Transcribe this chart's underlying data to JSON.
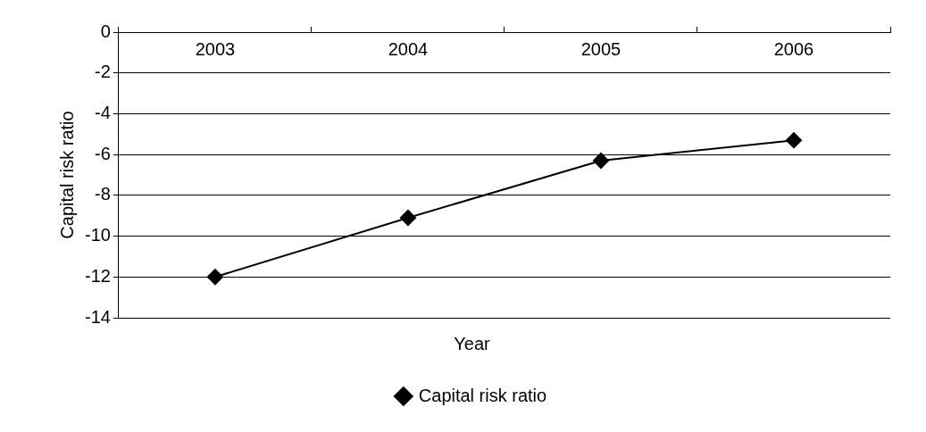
{
  "chart_data": {
    "type": "line",
    "xlabel": "Year",
    "ylabel": "Capital risk ratio",
    "categories": [
      "2003",
      "2004",
      "2005",
      "2006"
    ],
    "series": [
      {
        "name": "Capital risk ratio",
        "color": "#000000",
        "values": [
          -12.0,
          -9.1,
          -6.3,
          -5.3
        ]
      }
    ],
    "ylim": [
      -14,
      0
    ],
    "yticks": [
      -14,
      -12,
      -10,
      -8,
      -6,
      -4,
      -2,
      0
    ],
    "grid": "y",
    "legend": "bottom",
    "marker": "diamond",
    "line_style": "solid"
  }
}
